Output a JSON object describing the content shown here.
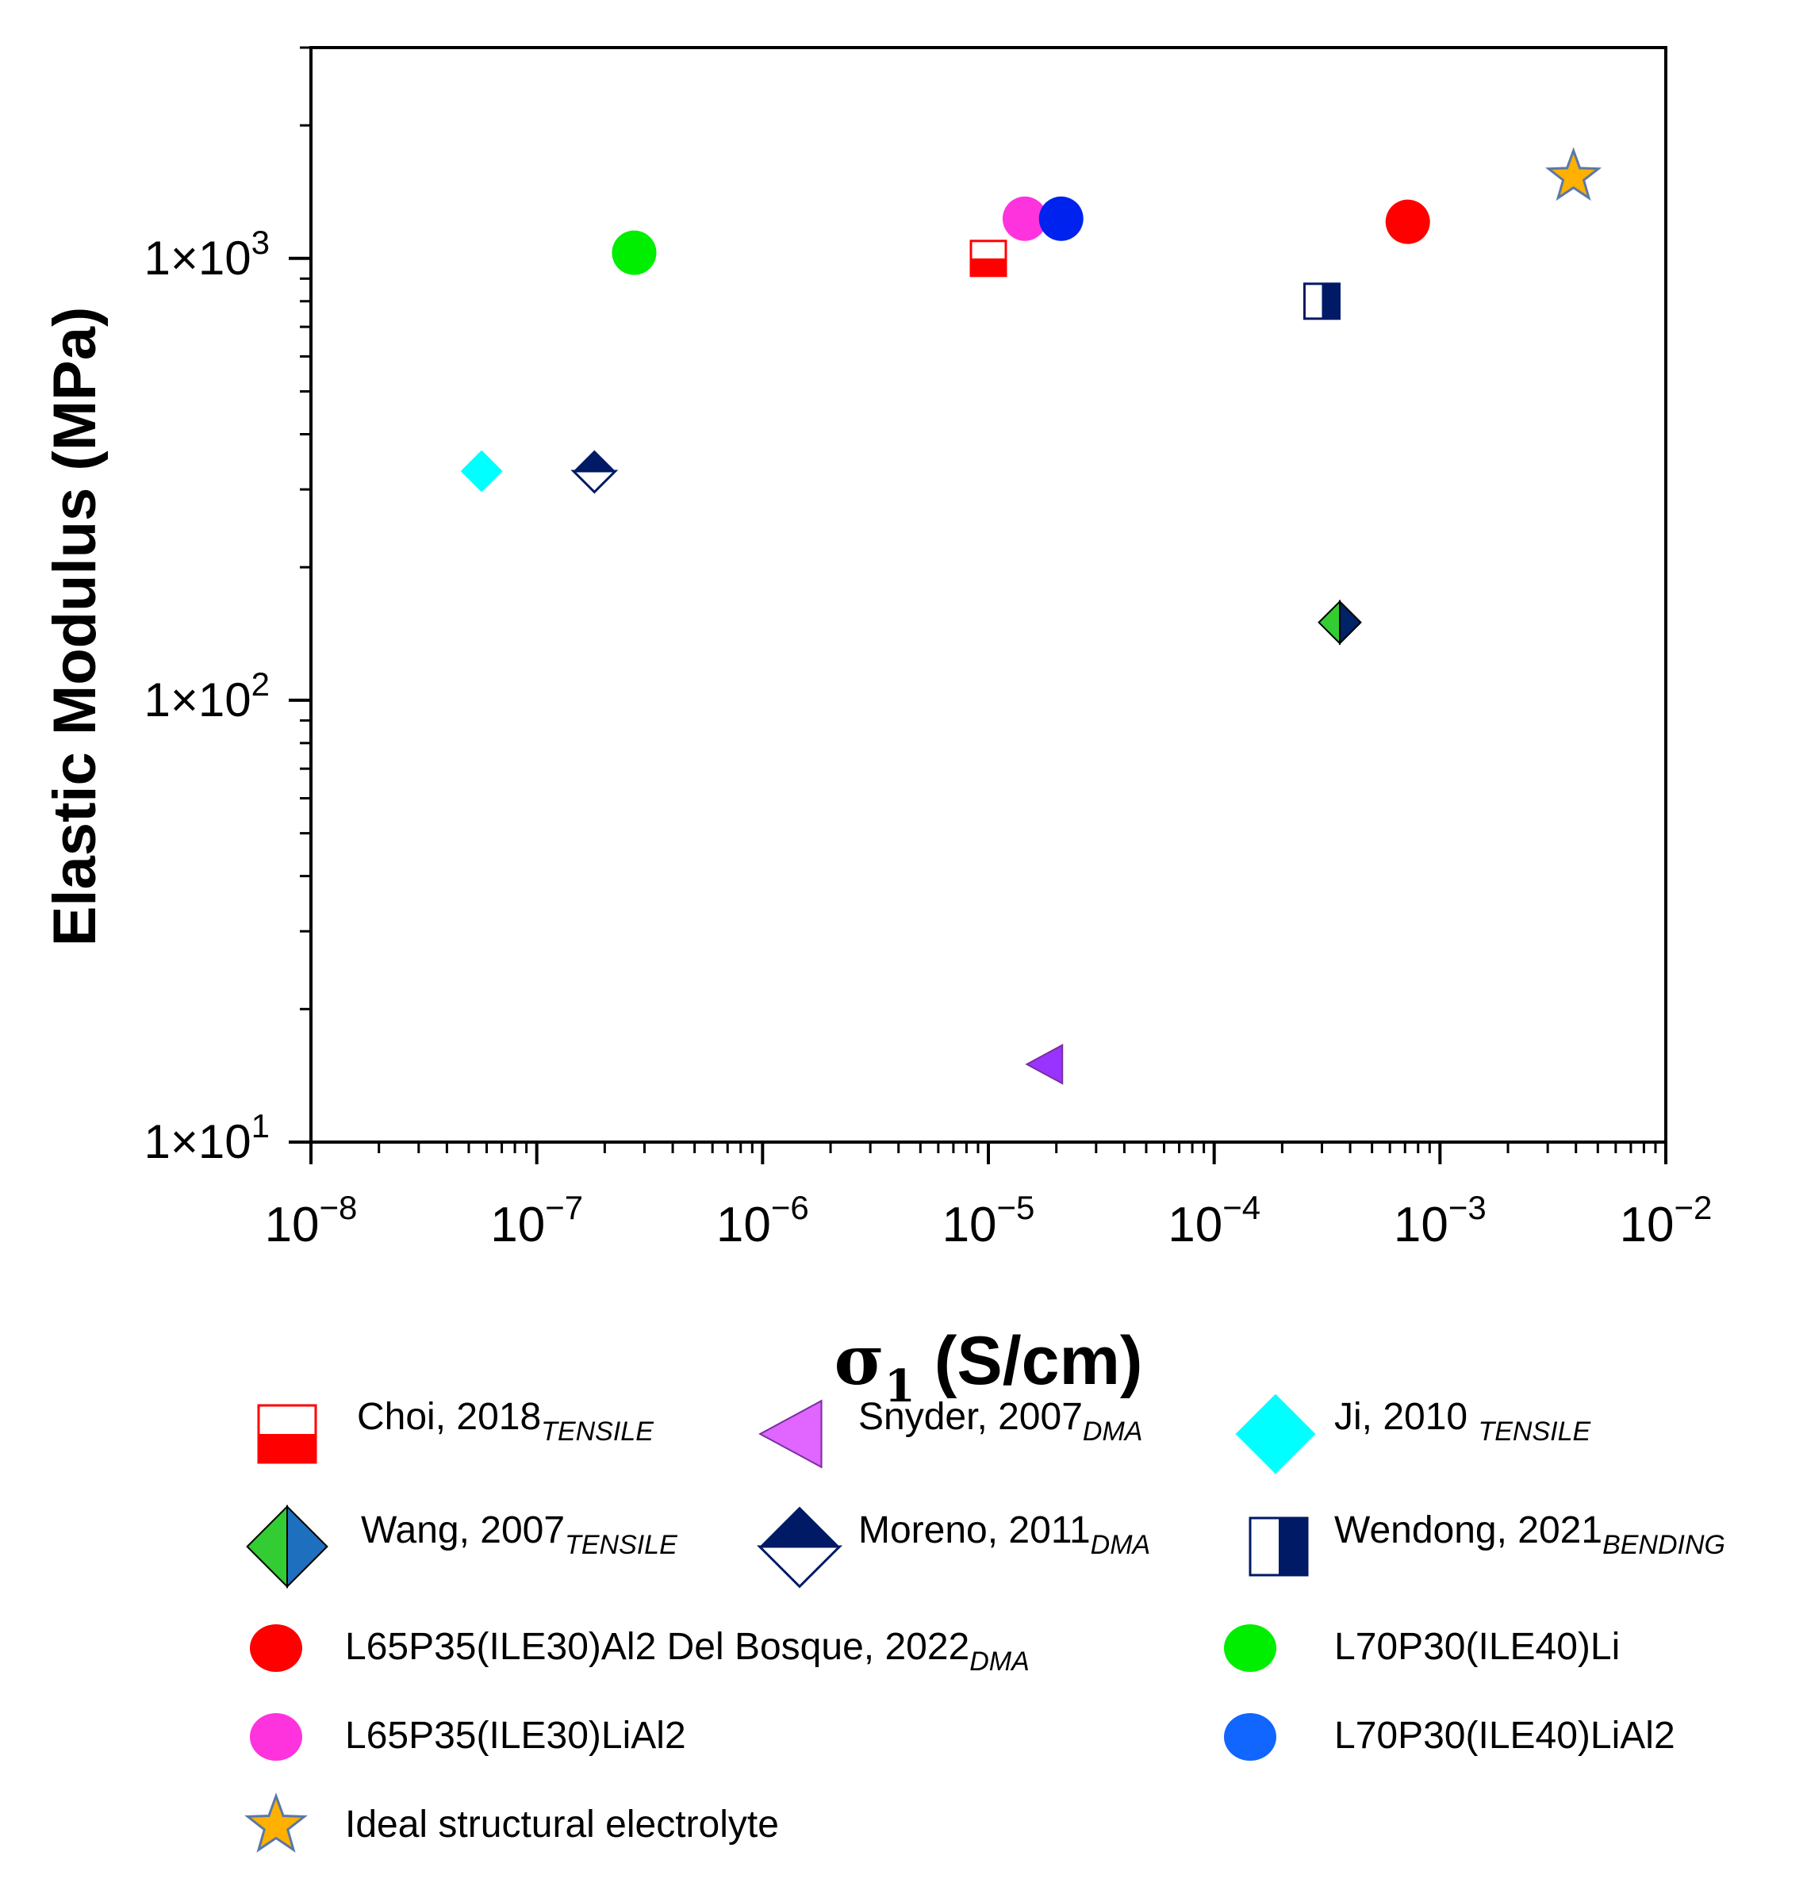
{
  "chart_data": {
    "type": "scatter",
    "xscale": "log",
    "yscale": "log",
    "xlim": [
      1e-08,
      0.01
    ],
    "ylim": [
      10,
      3000
    ],
    "xlabel": "σ1 (S/cm)",
    "ylabel": "Elastic Modulus (MPa)",
    "x_tick_labels": [
      {
        "value": 1e-08,
        "base": "10",
        "exp": "−8"
      },
      {
        "value": 1e-07,
        "base": "10",
        "exp": "−7"
      },
      {
        "value": 1e-06,
        "base": "10",
        "exp": "−6"
      },
      {
        "value": 1e-05,
        "base": "10",
        "exp": "−5"
      },
      {
        "value": 0.0001,
        "base": "10",
        "exp": "−4"
      },
      {
        "value": 0.001,
        "base": "10",
        "exp": "−3"
      },
      {
        "value": 0.01,
        "base": "10",
        "exp": "−2"
      }
    ],
    "y_tick_labels": [
      {
        "value": 10,
        "base": "1×10",
        "exp": "1"
      },
      {
        "value": 100,
        "base": "1×10",
        "exp": "2"
      },
      {
        "value": 1000,
        "base": "1×10",
        "exp": "3"
      }
    ],
    "series": [
      {
        "name": "Choi, 2018",
        "subscript": "TENSILE",
        "marker": "square-half-bottom",
        "color": "#ff0000",
        "x": 1e-05,
        "y": 1000
      },
      {
        "name": "Snyder, 2007",
        "subscript": "DMA",
        "marker": "triangle-left",
        "color": "#9933ff",
        "legend_color": "#e066ff",
        "x": 1.8e-05,
        "y": 15
      },
      {
        "name": "Ji, 2010 ",
        "subscript": "TENSILE",
        "marker": "diamond",
        "color": "#00ffff",
        "x": 5.7e-08,
        "y": 330
      },
      {
        "name": "Wang, 2007",
        "subscript": "TENSILE",
        "marker": "diamond-half-left",
        "color": "#33cc33",
        "color2": "#002266",
        "legend_color2": "#1f6fbf",
        "x": 0.00036,
        "y": 150
      },
      {
        "name": "Moreno, 2011",
        "subscript": "DMA",
        "marker": "diamond-half-top",
        "color": "#001a66",
        "x": 1.8e-07,
        "y": 330
      },
      {
        "name": "Wendong, 2021",
        "subscript": "BENDING",
        "marker": "square-half-left",
        "color": "#001a66",
        "x": 0.0003,
        "y": 800
      },
      {
        "name": "L65P35(ILE30)Al2 Del Bosque, 2022",
        "subscript": "DMA",
        "marker": "circle",
        "color": "#ff0000",
        "x": 0.00072,
        "y": 1210
      },
      {
        "name": "L70P30(ILE40)Li",
        "subscript": "",
        "marker": "circle",
        "color": "#00ee00",
        "x": 2.7e-07,
        "y": 1030
      },
      {
        "name": "L65P35(ILE30)LiAl2",
        "subscript": "",
        "marker": "circle",
        "color": "#ff33dd",
        "x": 1.45e-05,
        "y": 1230
      },
      {
        "name": "L70P30(ILE40)LiAl2",
        "subscript": "",
        "marker": "circle",
        "color": "#0022ee",
        "legend_color": "#1166ff",
        "x": 2.1e-05,
        "y": 1230
      },
      {
        "name": "Ideal structural  electrolyte",
        "subscript": "",
        "marker": "star",
        "color": "#ffb000",
        "x": 0.0039,
        "y": 1530
      }
    ]
  }
}
